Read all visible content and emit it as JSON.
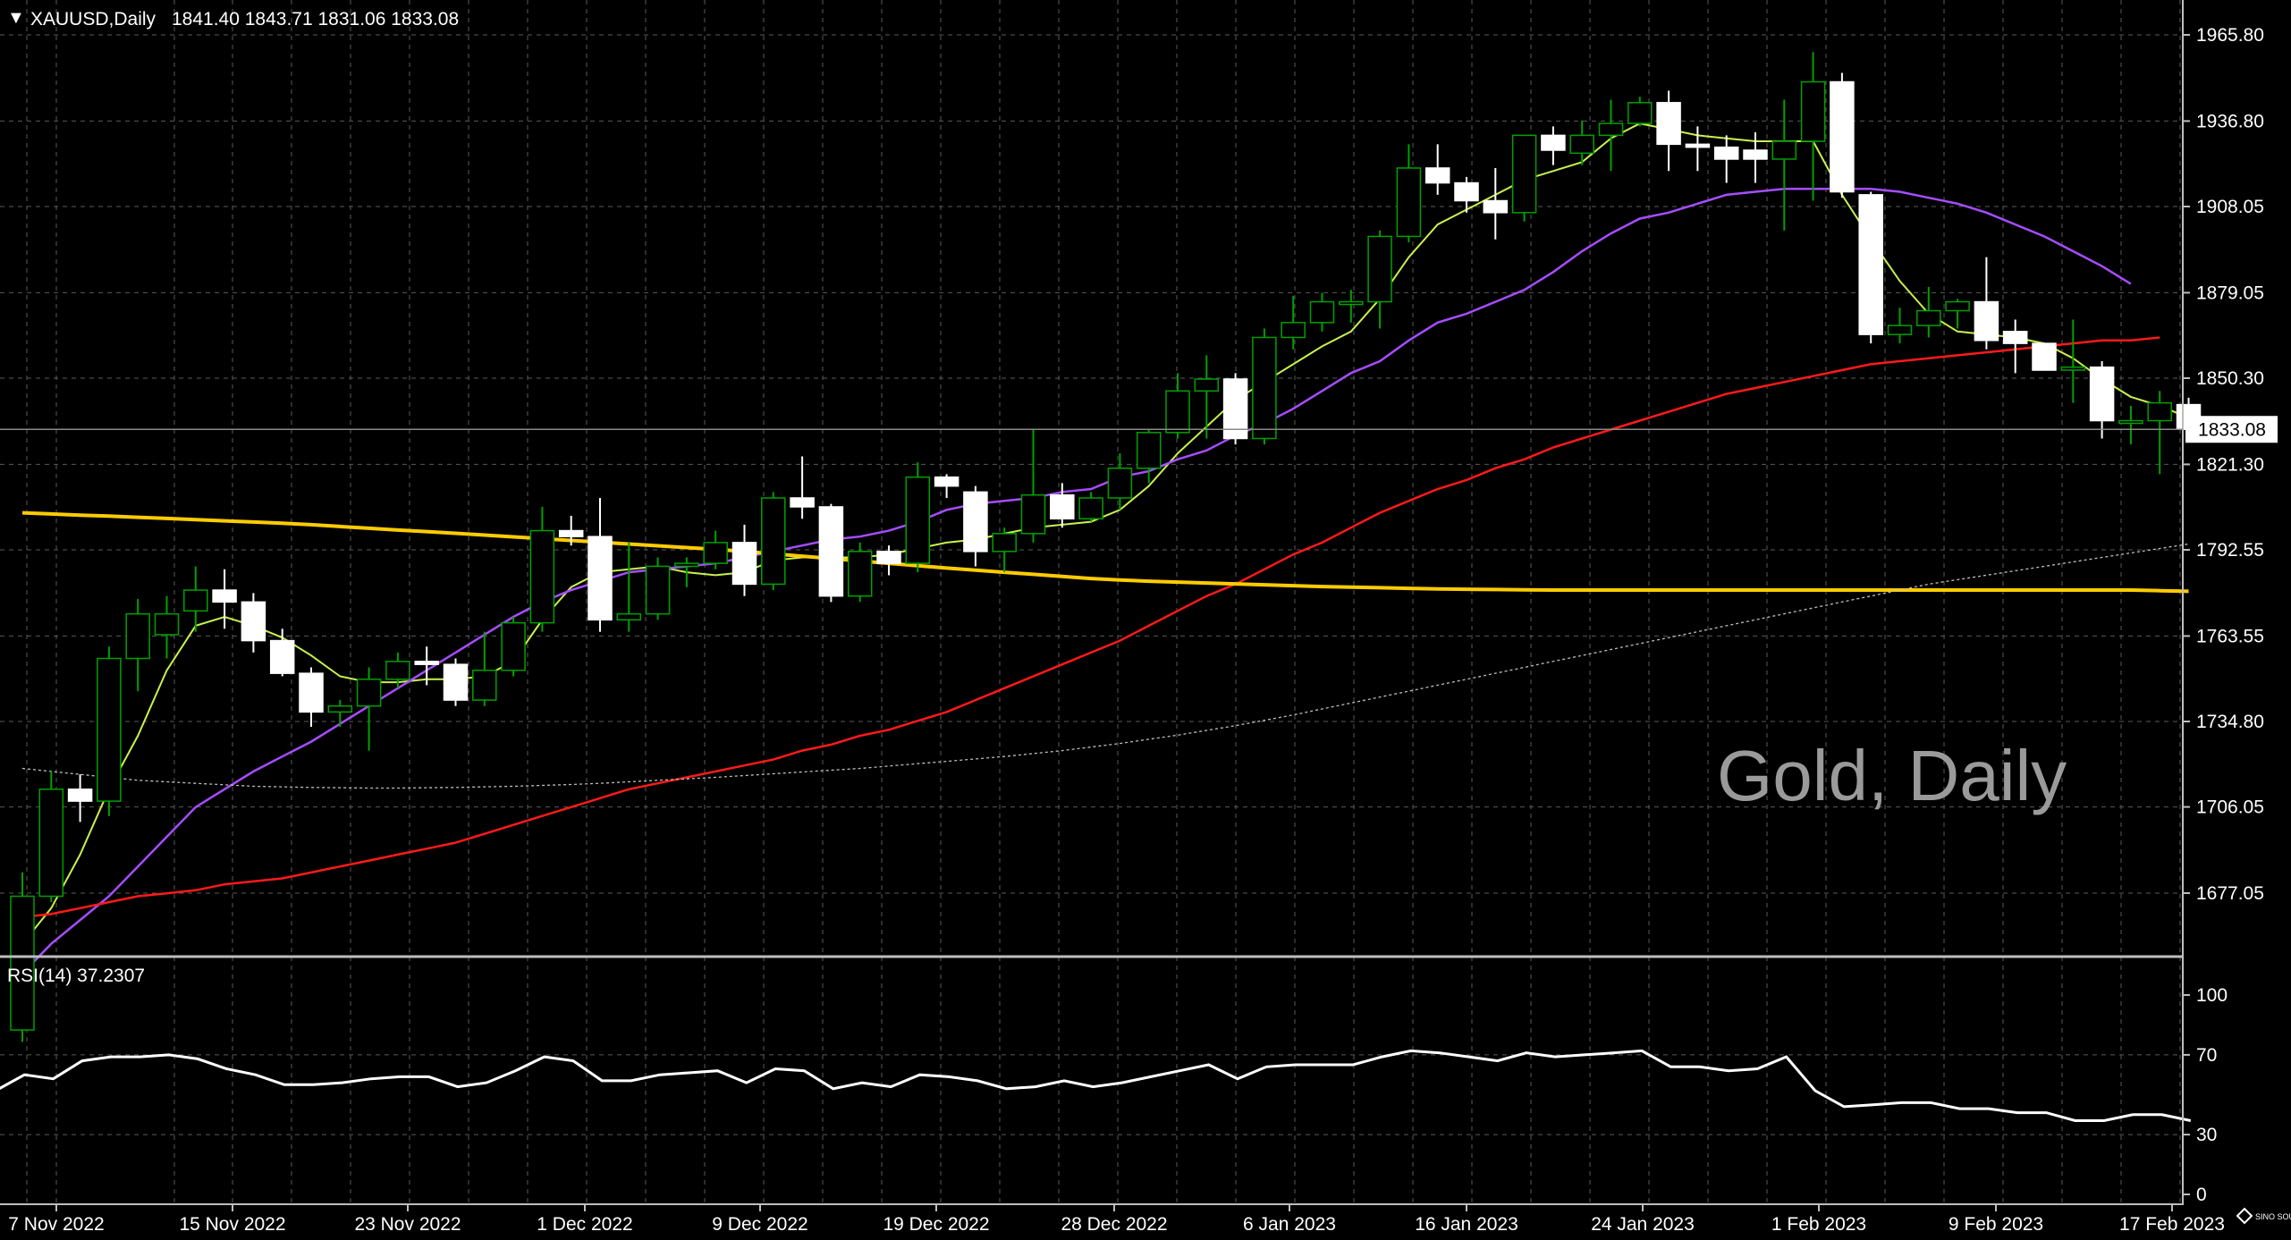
{
  "main_panel": {
    "header": {
      "menu_glyph": "▼",
      "symbol": "XAUUSD,Daily",
      "ohlc": "1841.40 1843.71 1831.06 1833.08"
    },
    "watermark": "Gold, Daily",
    "current_price": "1833.08",
    "price_ticks": [
      "1965.80",
      "1936.80",
      "1908.05",
      "1879.05",
      "1850.30",
      "1821.30",
      "1792.55",
      "1763.55",
      "1734.80",
      "1706.05",
      "1677.05"
    ]
  },
  "rsi_panel": {
    "label": "RSI(14) 37.2307",
    "ticks": [
      "100",
      "70",
      "30",
      "0"
    ]
  },
  "time_axis": {
    "labels": [
      "7 Nov 2022",
      "15 Nov 2022",
      "23 Nov 2022",
      "1 Dec 2022",
      "9 Dec 2022",
      "19 Dec 2022",
      "28 Dec 2022",
      "6 Jan 2023",
      "16 Jan 2023",
      "24 Jan 2023",
      "1 Feb 2023",
      "9 Feb 2023",
      "17 Feb 2023"
    ]
  },
  "branding": {
    "icon": "diamond-icon",
    "text": "SINO SOUND"
  },
  "colors": {
    "background": "#000000",
    "grid": "#5a5a5a",
    "candle_up": "#00a000",
    "candle_down_fill": "#ffffff",
    "ma_fast": "#c9f24f",
    "ma_mid": "#a64dff",
    "ma_slow": "#ff1a1a",
    "ma_long": "#ffcc00",
    "ma_longest": "#bfbfbf",
    "rsi": "#ffffff"
  },
  "chart_data": {
    "type": "candlestick",
    "symbol": "XAUUSD",
    "timeframe": "Daily",
    "y_range": [
      1660,
      1975
    ],
    "candles": [
      {
        "date": "2022-11-04",
        "open": 1631.0,
        "high": 1684.0,
        "low": 1627.0,
        "close": 1676.0
      },
      {
        "date": "2022-11-07",
        "open": 1676.0,
        "high": 1718.0,
        "low": 1674.0,
        "close": 1712.0
      },
      {
        "date": "2022-11-08",
        "open": 1712.0,
        "high": 1717.0,
        "low": 1701.0,
        "close": 1708.0
      },
      {
        "date": "2022-11-10",
        "open": 1708.0,
        "high": 1760.0,
        "low": 1703.0,
        "close": 1756.0
      },
      {
        "date": "2022-11-11",
        "open": 1756.0,
        "high": 1776.0,
        "low": 1745.0,
        "close": 1771.0
      },
      {
        "date": "2022-11-13",
        "open": 1764.0,
        "high": 1777.0,
        "low": 1756.0,
        "close": 1771.0
      },
      {
        "date": "2022-11-14",
        "open": 1772.0,
        "high": 1787.0,
        "low": 1765.0,
        "close": 1779.0
      },
      {
        "date": "2022-11-15",
        "open": 1779.0,
        "high": 1786.0,
        "low": 1766.0,
        "close": 1775.0
      },
      {
        "date": "2022-11-16",
        "open": 1775.0,
        "high": 1778.0,
        "low": 1758.0,
        "close": 1762.0
      },
      {
        "date": "2022-11-17",
        "open": 1762.0,
        "high": 1766.0,
        "low": 1750.0,
        "close": 1751.0
      },
      {
        "date": "2022-11-18",
        "open": 1751.0,
        "high": 1753.0,
        "low": 1733.0,
        "close": 1738.0
      },
      {
        "date": "2022-11-21",
        "open": 1738.0,
        "high": 1742.0,
        "low": 1733.0,
        "close": 1740.0
      },
      {
        "date": "2022-11-22",
        "open": 1740.0,
        "high": 1753.0,
        "low": 1725.0,
        "close": 1749.0
      },
      {
        "date": "2022-11-23",
        "open": 1749.0,
        "high": 1758.0,
        "low": 1746.0,
        "close": 1755.0
      },
      {
        "date": "2022-11-24",
        "open": 1755.0,
        "high": 1760.0,
        "low": 1747.0,
        "close": 1754.0
      },
      {
        "date": "2022-11-25",
        "open": 1754.0,
        "high": 1756.0,
        "low": 1740.0,
        "close": 1742.0
      },
      {
        "date": "2022-11-28",
        "open": 1742.0,
        "high": 1765.0,
        "low": 1740.0,
        "close": 1752.0
      },
      {
        "date": "2022-11-29",
        "open": 1752.0,
        "high": 1770.0,
        "low": 1750.0,
        "close": 1768.0
      },
      {
        "date": "2022-11-30",
        "open": 1768.0,
        "high": 1807.0,
        "low": 1765.0,
        "close": 1799.0
      },
      {
        "date": "2022-12-01",
        "open": 1799.0,
        "high": 1804.0,
        "low": 1794.0,
        "close": 1797.0
      },
      {
        "date": "2022-12-02",
        "open": 1797.0,
        "high": 1810.0,
        "low": 1765.0,
        "close": 1769.0
      },
      {
        "date": "2022-12-05",
        "open": 1769.0,
        "high": 1795.0,
        "low": 1765.0,
        "close": 1771.0
      },
      {
        "date": "2022-12-06",
        "open": 1771.0,
        "high": 1790.0,
        "low": 1769.0,
        "close": 1787.0
      },
      {
        "date": "2022-12-07",
        "open": 1787.0,
        "high": 1790.0,
        "low": 1780.0,
        "close": 1788.0
      },
      {
        "date": "2022-12-08",
        "open": 1788.0,
        "high": 1799.0,
        "low": 1786.0,
        "close": 1795.0
      },
      {
        "date": "2022-12-09",
        "open": 1795.0,
        "high": 1801.0,
        "low": 1777.0,
        "close": 1781.0
      },
      {
        "date": "2022-12-12",
        "open": 1781.0,
        "high": 1812.0,
        "low": 1779.0,
        "close": 1810.0
      },
      {
        "date": "2022-12-13",
        "open": 1810.0,
        "high": 1824.0,
        "low": 1803.0,
        "close": 1807.0
      },
      {
        "date": "2022-12-14",
        "open": 1807.0,
        "high": 1808.0,
        "low": 1775.0,
        "close": 1777.0
      },
      {
        "date": "2022-12-15",
        "open": 1777.0,
        "high": 1795.0,
        "low": 1775.0,
        "close": 1792.0
      },
      {
        "date": "2022-12-16",
        "open": 1792.0,
        "high": 1794.0,
        "low": 1784.0,
        "close": 1788.0
      },
      {
        "date": "2022-12-19",
        "open": 1788.0,
        "high": 1822.0,
        "low": 1785.0,
        "close": 1817.0
      },
      {
        "date": "2022-12-20",
        "open": 1817.0,
        "high": 1818.0,
        "low": 1810.0,
        "close": 1814.0
      },
      {
        "date": "2022-12-21",
        "open": 1812.0,
        "high": 1814.0,
        "low": 1787.0,
        "close": 1792.0
      },
      {
        "date": "2022-12-22",
        "open": 1792.0,
        "high": 1800.0,
        "low": 1785.0,
        "close": 1798.0
      },
      {
        "date": "2022-12-23",
        "open": 1798.0,
        "high": 1833.0,
        "low": 1795.0,
        "close": 1811.0
      },
      {
        "date": "2022-12-27",
        "open": 1811.0,
        "high": 1815.0,
        "low": 1800.0,
        "close": 1803.0
      },
      {
        "date": "2022-12-28",
        "open": 1803.0,
        "high": 1812.0,
        "low": 1802.0,
        "close": 1810.0
      },
      {
        "date": "2022-12-29",
        "open": 1810.0,
        "high": 1825.0,
        "low": 1806.0,
        "close": 1820.0
      },
      {
        "date": "2022-12-30",
        "open": 1820.0,
        "high": 1833.0,
        "low": 1815.0,
        "close": 1832.0
      },
      {
        "date": "2023-01-02",
        "open": 1832.0,
        "high": 1852.0,
        "low": 1830.0,
        "close": 1846.0
      },
      {
        "date": "2023-01-03",
        "open": 1846.0,
        "high": 1858.0,
        "low": 1830.0,
        "close": 1850.0
      },
      {
        "date": "2023-01-04",
        "open": 1850.0,
        "high": 1852.0,
        "low": 1828.0,
        "close": 1830.0
      },
      {
        "date": "2023-01-05",
        "open": 1830.0,
        "high": 1867.0,
        "low": 1828.0,
        "close": 1864.0
      },
      {
        "date": "2023-01-06",
        "open": 1864.0,
        "high": 1878.0,
        "low": 1860.0,
        "close": 1869.0
      },
      {
        "date": "2023-01-09",
        "open": 1869.0,
        "high": 1879.0,
        "low": 1866.0,
        "close": 1876.0
      },
      {
        "date": "2023-01-10",
        "open": 1876.0,
        "high": 1880.0,
        "low": 1869.0,
        "close": 1876.0
      },
      {
        "date": "2023-01-11",
        "open": 1876.0,
        "high": 1900.0,
        "low": 1867.0,
        "close": 1898.0
      },
      {
        "date": "2023-01-12",
        "open": 1898.0,
        "high": 1929.0,
        "low": 1896.0,
        "close": 1921.0
      },
      {
        "date": "2023-01-13",
        "open": 1921.0,
        "high": 1929.0,
        "low": 1912.0,
        "close": 1916.0
      },
      {
        "date": "2023-01-16",
        "open": 1916.0,
        "high": 1918.0,
        "low": 1906.0,
        "close": 1910.0
      },
      {
        "date": "2023-01-17",
        "open": 1910.0,
        "high": 1921.0,
        "low": 1897.0,
        "close": 1906.0
      },
      {
        "date": "2023-01-18",
        "open": 1906.0,
        "high": 1932.0,
        "low": 1903.0,
        "close": 1932.0
      },
      {
        "date": "2023-01-19",
        "open": 1932.0,
        "high": 1935.0,
        "low": 1922.0,
        "close": 1927.0
      },
      {
        "date": "2023-01-20",
        "open": 1926.0,
        "high": 1937.0,
        "low": 1922.0,
        "close": 1932.0
      },
      {
        "date": "2023-01-23",
        "open": 1932.0,
        "high": 1944.0,
        "low": 1920.0,
        "close": 1936.0
      },
      {
        "date": "2023-01-24",
        "open": 1936.0,
        "high": 1945.0,
        "low": 1935.0,
        "close": 1943.0
      },
      {
        "date": "2023-01-25",
        "open": 1943.0,
        "high": 1947.0,
        "low": 1920.0,
        "close": 1929.0
      },
      {
        "date": "2023-01-26",
        "open": 1929.0,
        "high": 1935.0,
        "low": 1920.0,
        "close": 1928.0
      },
      {
        "date": "2023-01-27",
        "open": 1928.0,
        "high": 1932.0,
        "low": 1916.0,
        "close": 1924.0
      },
      {
        "date": "2023-01-30",
        "open": 1927.0,
        "high": 1933.0,
        "low": 1916.0,
        "close": 1924.0
      },
      {
        "date": "2023-01-31",
        "open": 1924.0,
        "high": 1944.0,
        "low": 1900.0,
        "close": 1930.0
      },
      {
        "date": "2023-02-01",
        "open": 1930.0,
        "high": 1960.0,
        "low": 1910.0,
        "close": 1950.0
      },
      {
        "date": "2023-02-02",
        "open": 1950.0,
        "high": 1953.0,
        "low": 1911.0,
        "close": 1913.0
      },
      {
        "date": "2023-02-03",
        "open": 1912.0,
        "high": 1913.0,
        "low": 1862.0,
        "close": 1865.0
      },
      {
        "date": "2023-02-06",
        "open": 1865.0,
        "high": 1874.0,
        "low": 1862.0,
        "close": 1868.0
      },
      {
        "date": "2023-02-07",
        "open": 1868.0,
        "high": 1881.0,
        "low": 1864.0,
        "close": 1873.0
      },
      {
        "date": "2023-02-08",
        "open": 1873.0,
        "high": 1877.0,
        "low": 1867.0,
        "close": 1876.0
      },
      {
        "date": "2023-02-09",
        "open": 1876.0,
        "high": 1891.0,
        "low": 1860.0,
        "close": 1863.0
      },
      {
        "date": "2023-02-10",
        "open": 1866.0,
        "high": 1870.0,
        "low": 1852.0,
        "close": 1862.0
      },
      {
        "date": "2023-02-13",
        "open": 1862.0,
        "high": 1862.0,
        "low": 1853.0,
        "close": 1853.0
      },
      {
        "date": "2023-02-14",
        "open": 1853.0,
        "high": 1870.0,
        "low": 1842.0,
        "close": 1854.0
      },
      {
        "date": "2023-02-15",
        "open": 1854.0,
        "high": 1856.0,
        "low": 1830.0,
        "close": 1836.0
      },
      {
        "date": "2023-02-16",
        "open": 1836.0,
        "high": 1841.0,
        "low": 1828.0,
        "close": 1836.0
      },
      {
        "date": "2023-02-17",
        "open": 1836.0,
        "high": 1846.0,
        "low": 1818.0,
        "close": 1842.0
      },
      {
        "date": "2023-02-20",
        "open": 1841.4,
        "high": 1843.71,
        "low": 1831.06,
        "close": 1833.08
      }
    ],
    "moving_averages": [
      {
        "color": "#c9f24f",
        "values": [
          1660,
          1672,
          1690,
          1712,
          1730,
          1752,
          1767,
          1770,
          1767,
          1763,
          1757,
          1750,
          1748,
          1748,
          1749,
          1749,
          1750,
          1755,
          1769,
          1780,
          1785,
          1786,
          1787,
          1785,
          1784,
          1785,
          1789,
          1790,
          1790,
          1790,
          1791,
          1793,
          1795,
          1796,
          1798,
          1800,
          1801,
          1802,
          1806,
          1814,
          1825,
          1834,
          1843,
          1849,
          1855,
          1861,
          1866,
          1877,
          1891,
          1902,
          1907,
          1912,
          1917,
          1920,
          1923,
          1931,
          1936,
          1934,
          1932,
          1931,
          1930,
          1930,
          1930,
          1912,
          1897,
          1883,
          1872,
          1866,
          1865,
          1864,
          1862,
          1857,
          1850,
          1844,
          1841,
          1837
        ]
      },
      {
        "color": "#a64dff",
        "values": [
          1650,
          1660,
          1668,
          1676,
          1686,
          1696,
          1706,
          1712,
          1718,
          1723,
          1728,
          1734,
          1740,
          1746,
          1752,
          1758,
          1764,
          1770,
          1775,
          1779,
          1782,
          1785,
          1786,
          1787,
          1788,
          1790,
          1792,
          1794,
          1796,
          1797,
          1799,
          1802,
          1806,
          1808,
          1809,
          1810,
          1812,
          1813,
          1817,
          1819,
          1823,
          1826,
          1831,
          1835,
          1840,
          1846,
          1852,
          1856,
          1863,
          1869,
          1872,
          1876,
          1880,
          1886,
          1893,
          1899,
          1904,
          1906,
          1909,
          1912,
          1913,
          1914,
          1914,
          1914,
          1914,
          1913,
          1911,
          1909,
          1906,
          1902,
          1898,
          1893,
          1888,
          1882
        ]
      },
      {
        "color": "#ff1a1a",
        "values": [
          1669,
          1670,
          1672,
          1674,
          1676,
          1677,
          1678,
          1680,
          1681,
          1682,
          1684,
          1686,
          1688,
          1690,
          1692,
          1694,
          1697,
          1700,
          1703,
          1706,
          1709,
          1712,
          1714,
          1716,
          1718,
          1720,
          1722,
          1725,
          1727,
          1730,
          1732,
          1735,
          1738,
          1742,
          1746,
          1750,
          1754,
          1758,
          1762,
          1767,
          1772,
          1777,
          1781,
          1786,
          1791,
          1795,
          1800,
          1805,
          1809,
          1813,
          1816,
          1820,
          1823,
          1827,
          1830,
          1833,
          1836,
          1839,
          1842,
          1845,
          1847,
          1849,
          1851,
          1853,
          1855,
          1856,
          1857,
          1858,
          1859,
          1860,
          1861,
          1862,
          1863,
          1863,
          1864
        ]
      },
      {
        "color": "#ffcc00",
        "values": [
          1805,
          1804.6,
          1804.2,
          1803.9,
          1803.5,
          1803.1,
          1802.7,
          1802.3,
          1801.9,
          1801.5,
          1801,
          1800.4,
          1799.8,
          1799.2,
          1798.7,
          1798.1,
          1797.5,
          1796.9,
          1796.3,
          1795.7,
          1795.1,
          1794.5,
          1793.9,
          1793.3,
          1792.7,
          1792,
          1791.2,
          1790.4,
          1789.6,
          1788.8,
          1788,
          1787.2,
          1786.4,
          1785.7,
          1785,
          1784.3,
          1783.6,
          1782.9,
          1782.4,
          1782,
          1781.7,
          1781.4,
          1781.1,
          1780.8,
          1780.5,
          1780.2,
          1780,
          1779.8,
          1779.6,
          1779.4,
          1779.3,
          1779.2,
          1779.1,
          1779,
          1779,
          1779,
          1779,
          1779,
          1779,
          1779,
          1779,
          1779,
          1779,
          1779,
          1779,
          1779,
          1779,
          1779,
          1779,
          1779,
          1779,
          1779,
          1779,
          1779,
          1778.8,
          1778.6
        ]
      },
      {
        "color": "#bfbfbf",
        "values": [
          1719,
          1718,
          1717,
          1716,
          1715,
          1714.5,
          1714,
          1713.5,
          1713,
          1712.8,
          1712.6,
          1712.5,
          1712.4,
          1712.4,
          1712.5,
          1712.6,
          1712.8,
          1713.0,
          1713.3,
          1713.6,
          1714,
          1714.5,
          1715,
          1715.5,
          1716,
          1716.6,
          1717.2,
          1717.8,
          1718.4,
          1719,
          1719.8,
          1720.6,
          1721.4,
          1722.2,
          1723,
          1724,
          1725,
          1726.2,
          1727.4,
          1728.8,
          1730.2,
          1731.8,
          1733.4,
          1735.2,
          1737,
          1739,
          1741,
          1743,
          1745,
          1747,
          1749,
          1751,
          1753,
          1755,
          1757,
          1759,
          1761,
          1763,
          1765,
          1767,
          1769,
          1771,
          1773,
          1775,
          1777,
          1779,
          1781,
          1782.5,
          1784,
          1785.5,
          1787,
          1788.5,
          1790,
          1791.5,
          1793,
          1794.5
        ]
      }
    ],
    "rsi": {
      "period": 14,
      "last": 37.2307,
      "y_range": [
        0,
        100
      ],
      "values": [
        52,
        60,
        58,
        67,
        69,
        69,
        70,
        68,
        63,
        60,
        55,
        55,
        56,
        58,
        59,
        59,
        54,
        56,
        62,
        69,
        67,
        57,
        57,
        60,
        61,
        62,
        56,
        63,
        62,
        53,
        56,
        54,
        60,
        59,
        57,
        53,
        54,
        57,
        54,
        56,
        59,
        62,
        65,
        58,
        64,
        65,
        65,
        65,
        69,
        72,
        71,
        69,
        67,
        71,
        69,
        70,
        71,
        72,
        64,
        64,
        62,
        63,
        69,
        52,
        44,
        45,
        46,
        46,
        43,
        43,
        41,
        41,
        37,
        37,
        40,
        40,
        37
      ]
    }
  }
}
